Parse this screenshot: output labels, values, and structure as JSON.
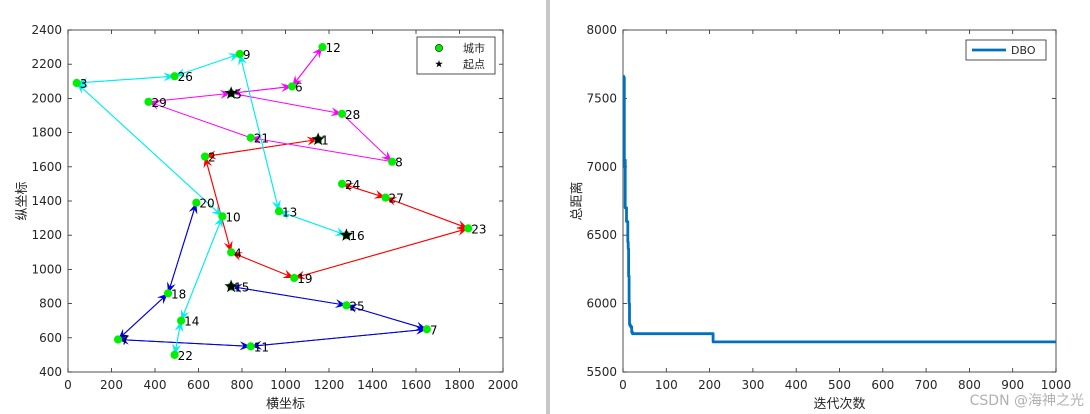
{
  "chart_data": [
    {
      "type": "scatter",
      "xlabel": "横坐标",
      "ylabel": "纵坐标",
      "xlim": [
        0,
        2000
      ],
      "ylim": [
        400,
        2400
      ],
      "xticks": [
        0,
        200,
        400,
        600,
        800,
        1000,
        1200,
        1400,
        1600,
        1800,
        2000
      ],
      "yticks": [
        400,
        600,
        800,
        1000,
        1200,
        1400,
        1600,
        1800,
        2000,
        2200,
        2400
      ],
      "grid": false,
      "legend": {
        "placement": "top-right",
        "entries": [
          "城市",
          "起点"
        ]
      },
      "point_color": "#00ee00",
      "start_marker_color": "#000000",
      "cities": [
        {
          "id": "1",
          "x": 1150,
          "y": 1760
        },
        {
          "id": "2",
          "x": 630,
          "y": 1660
        },
        {
          "id": "3",
          "x": 40,
          "y": 2090
        },
        {
          "id": "4",
          "x": 750,
          "y": 1100
        },
        {
          "id": "5",
          "x": 750,
          "y": 2030
        },
        {
          "id": "6",
          "x": 1030,
          "y": 2070
        },
        {
          "id": "7",
          "x": 1650,
          "y": 650
        },
        {
          "id": "7",
          "x": 230,
          "y": 590
        },
        {
          "id": "8",
          "x": 1490,
          "y": 1630
        },
        {
          "id": "9",
          "x": 790,
          "y": 2260
        },
        {
          "id": "10",
          "x": 710,
          "y": 1310
        },
        {
          "id": "11",
          "x": 840,
          "y": 550
        },
        {
          "id": "12",
          "x": 1170,
          "y": 2300
        },
        {
          "id": "13",
          "x": 970,
          "y": 1340
        },
        {
          "id": "14",
          "x": 520,
          "y": 700
        },
        {
          "id": "15",
          "x": 750,
          "y": 900
        },
        {
          "id": "16",
          "x": 1280,
          "y": 1200
        },
        {
          "id": "18",
          "x": 460,
          "y": 860
        },
        {
          "id": "19",
          "x": 1040,
          "y": 950
        },
        {
          "id": "20",
          "x": 590,
          "y": 1390
        },
        {
          "id": "21",
          "x": 840,
          "y": 1770
        },
        {
          "id": "22",
          "x": 490,
          "y": 500
        },
        {
          "id": "23",
          "x": 1840,
          "y": 1240
        },
        {
          "id": "24",
          "x": 1260,
          "y": 1500
        },
        {
          "id": "25",
          "x": 1280,
          "y": 790
        },
        {
          "id": "26",
          "x": 490,
          "y": 2130
        },
        {
          "id": "27",
          "x": 1460,
          "y": 1420
        },
        {
          "id": "28",
          "x": 1260,
          "y": 1910
        },
        {
          "id": "29",
          "x": 370,
          "y": 1980
        }
      ],
      "start_points": [
        {
          "x": 1150,
          "y": 1760
        },
        {
          "x": 750,
          "y": 2030
        },
        {
          "x": 750,
          "y": 900
        },
        {
          "x": 1280,
          "y": 1200
        }
      ],
      "routes": [
        {
          "color": "#ff0000",
          "path": [
            [
              1150,
              1760
            ],
            [
              630,
              1660
            ],
            [
              750,
              1100
            ],
            [
              1040,
              950
            ],
            [
              1840,
              1240
            ],
            [
              1460,
              1420
            ],
            [
              1260,
              1500
            ],
            [
              1460,
              1420
            ],
            [
              1840,
              1240
            ],
            [
              1040,
              950
            ],
            [
              750,
              1100
            ],
            [
              630,
              1660
            ],
            [
              1150,
              1760
            ]
          ]
        },
        {
          "color": "#ff00ff",
          "path": [
            [
              750,
              2030
            ],
            [
              1030,
              2070
            ],
            [
              1170,
              2300
            ],
            [
              1030,
              2070
            ],
            [
              750,
              2030
            ],
            [
              1260,
              1910
            ],
            [
              1490,
              1630
            ],
            [
              840,
              1770
            ],
            [
              370,
              1980
            ],
            [
              750,
              2030
            ]
          ]
        },
        {
          "color": "#0000dd",
          "path": [
            [
              750,
              900
            ],
            [
              1280,
              790
            ],
            [
              1650,
              650
            ],
            [
              840,
              550
            ],
            [
              230,
              590
            ],
            [
              460,
              860
            ],
            [
              590,
              1390
            ],
            [
              460,
              860
            ],
            [
              230,
              590
            ],
            [
              840,
              550
            ],
            [
              1650,
              650
            ],
            [
              1280,
              790
            ],
            [
              750,
              900
            ]
          ]
        },
        {
          "color": "#00eeee",
          "path": [
            [
              1280,
              1200
            ],
            [
              970,
              1340
            ],
            [
              790,
              2260
            ],
            [
              490,
              2130
            ],
            [
              40,
              2090
            ],
            [
              710,
              1310
            ],
            [
              520,
              700
            ],
            [
              490,
              500
            ],
            [
              520,
              700
            ],
            [
              710,
              1310
            ],
            [
              40,
              2090
            ],
            [
              490,
              2130
            ],
            [
              790,
              2260
            ],
            [
              970,
              1340
            ],
            [
              1280,
              1200
            ]
          ]
        }
      ]
    },
    {
      "type": "line",
      "xlabel": "迭代次数",
      "ylabel": "总距离",
      "xlim": [
        0,
        1000
      ],
      "ylim": [
        5500,
        8000
      ],
      "xticks": [
        0,
        100,
        200,
        300,
        400,
        500,
        600,
        700,
        800,
        900,
        1000
      ],
      "yticks": [
        5500,
        6000,
        6500,
        7000,
        7500,
        8000
      ],
      "grid": false,
      "legend": {
        "placement": "top-right",
        "entries": [
          "DBO"
        ]
      },
      "series": [
        {
          "name": "DBO",
          "color": "#0072bd",
          "x": [
            1,
            2,
            3,
            4,
            5,
            6,
            7,
            8,
            9,
            10,
            11,
            12,
            13,
            14,
            15,
            16,
            18,
            20,
            22,
            25,
            30,
            60,
            100,
            150,
            205,
            208,
            212,
            300,
            500,
            700,
            900,
            1000
          ],
          "y": [
            7660,
            7650,
            7000,
            7050,
            6700,
            6700,
            6700,
            6600,
            6600,
            6600,
            6450,
            6400,
            6200,
            6000,
            5850,
            5840,
            5830,
            5790,
            5780,
            5780,
            5780,
            5780,
            5780,
            5780,
            5780,
            5720,
            5720,
            5720,
            5720,
            5720,
            5720,
            5720
          ]
        }
      ]
    }
  ],
  "watermark": "CSDN @海神之光"
}
